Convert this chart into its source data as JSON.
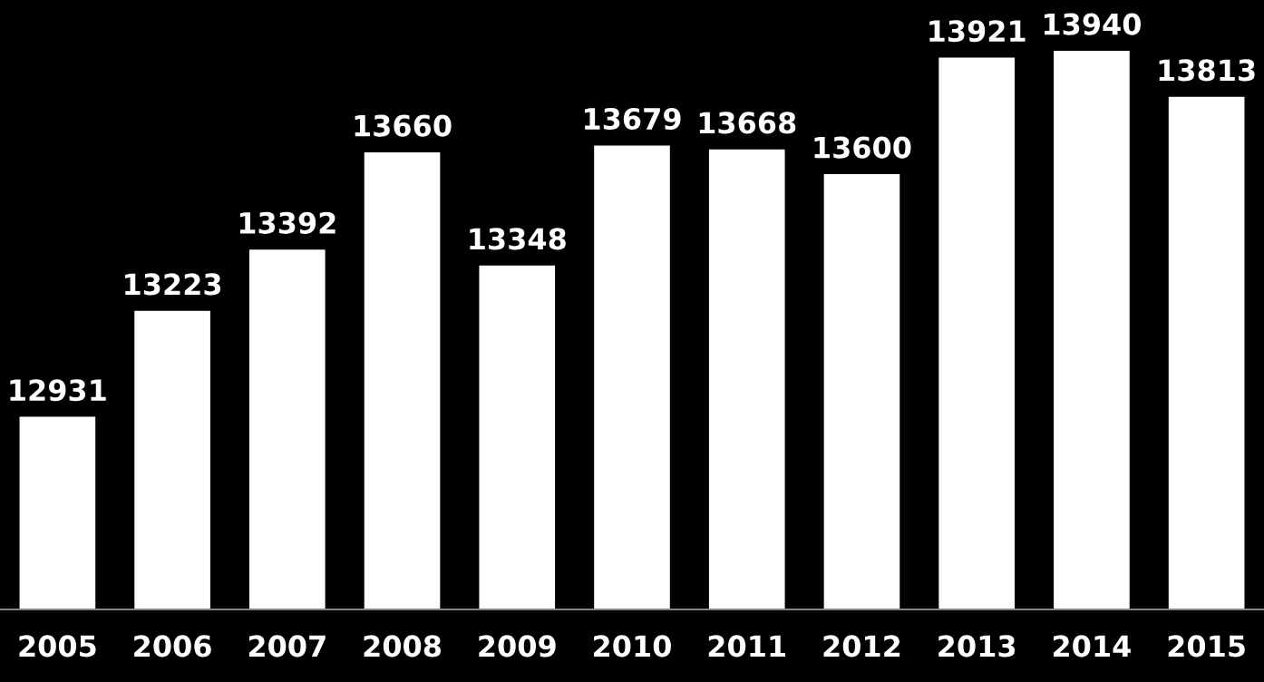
{
  "chart_data": {
    "type": "bar",
    "categories": [
      "2005",
      "2006",
      "2007",
      "2008",
      "2009",
      "2010",
      "2011",
      "2012",
      "2013",
      "2014",
      "2015"
    ],
    "values": [
      12931,
      13223,
      13392,
      13660,
      13348,
      13679,
      13668,
      13600,
      13921,
      13940,
      13813
    ],
    "color": "#ffffff",
    "ylim": [
      12400,
      14080
    ],
    "tick_labels": "x",
    "data_labels": true
  }
}
